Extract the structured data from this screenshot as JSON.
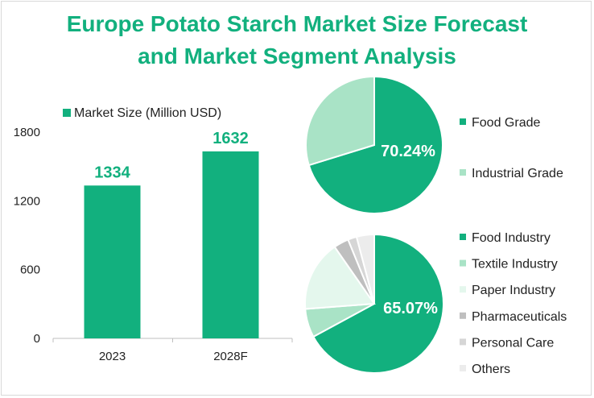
{
  "title_line1": "Europe Potato Starch Market Size Forecast",
  "title_line2": "and Market Segment Analysis",
  "colors": {
    "primary": "#12b07e",
    "light_green": "#a9e3c6",
    "pale_green": "#e4f7ed",
    "gray": "#bfbfbf",
    "light_gray": "#d6d6d6",
    "lighter_gray": "#ececec"
  },
  "chart_data": [
    {
      "type": "bar",
      "categories": [
        "2023",
        "2028F"
      ],
      "series": [
        {
          "name": "Market Size (Million USD)",
          "values": [
            1334,
            1632
          ]
        }
      ],
      "data_labels": [
        "1334",
        "1632"
      ],
      "yticks": [
        "0",
        "600",
        "1200",
        "1800"
      ],
      "ylim": [
        0,
        1800
      ],
      "grid": false,
      "legend": "top"
    },
    {
      "type": "pie",
      "labels": [
        "Food Grade",
        "Industrial Grade"
      ],
      "values": [
        70.24,
        29.76
      ],
      "highlight_label": "70.24%",
      "legend": "right"
    },
    {
      "type": "pie",
      "labels": [
        "Food Industry",
        "Textile Industry",
        "Paper Industry",
        "Pharmaceuticals",
        "Personal Care",
        "Others"
      ],
      "values": [
        65.07,
        6.5,
        16.0,
        3.4,
        2.0,
        4.0
      ],
      "highlight_label": "65.07%",
      "legend": "right"
    }
  ]
}
